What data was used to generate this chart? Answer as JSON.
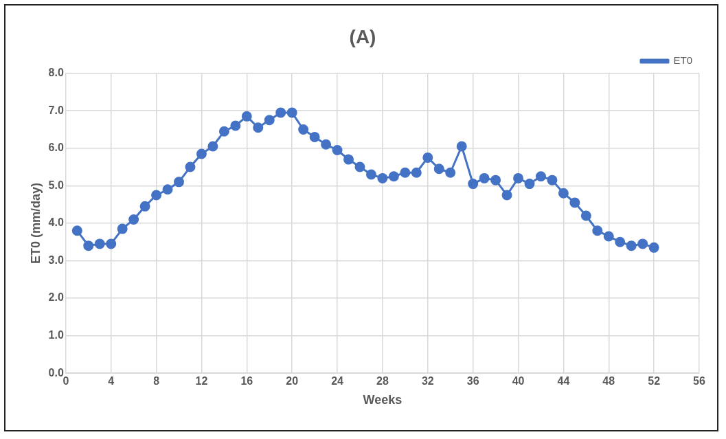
{
  "chart_data": {
    "type": "line",
    "title": "(A)",
    "xlabel": "Weeks",
    "ylabel": "ET0 (mm/day)",
    "x": [
      1,
      2,
      3,
      4,
      5,
      6,
      7,
      8,
      9,
      10,
      11,
      12,
      13,
      14,
      15,
      16,
      17,
      18,
      19,
      20,
      21,
      22,
      23,
      24,
      25,
      26,
      27,
      28,
      29,
      30,
      31,
      32,
      33,
      34,
      35,
      36,
      37,
      38,
      39,
      40,
      41,
      42,
      43,
      44,
      45,
      46,
      47,
      48,
      49,
      50,
      51,
      52
    ],
    "series": [
      {
        "name": "ET0",
        "color": "#4472c4",
        "values": [
          3.8,
          3.4,
          3.45,
          3.45,
          3.85,
          4.1,
          4.45,
          4.75,
          4.9,
          5.1,
          5.5,
          5.85,
          6.05,
          6.45,
          6.6,
          6.85,
          6.55,
          6.75,
          6.95,
          6.95,
          6.5,
          6.3,
          6.1,
          5.95,
          5.7,
          5.5,
          5.3,
          5.2,
          5.25,
          5.35,
          5.35,
          5.75,
          5.45,
          5.35,
          6.05,
          5.05,
          5.2,
          5.15,
          4.75,
          5.2,
          5.05,
          5.25,
          5.15,
          4.8,
          4.55,
          4.2,
          3.8,
          3.65,
          3.5,
          3.4,
          3.45,
          3.35
        ]
      }
    ],
    "xlim": [
      0,
      56
    ],
    "xticks": [
      0,
      4,
      8,
      12,
      16,
      20,
      24,
      28,
      32,
      36,
      40,
      44,
      48,
      52,
      56
    ],
    "ylim": [
      0,
      8
    ],
    "yticks": [
      {
        "value": 0,
        "label": "0.0"
      },
      {
        "value": 1,
        "label": "1.0"
      },
      {
        "value": 2,
        "label": "2.0"
      },
      {
        "value": 3,
        "label": "3.0"
      },
      {
        "value": 4,
        "label": "4.0"
      },
      {
        "value": 5,
        "label": "5.0"
      },
      {
        "value": 6,
        "label": "6.0"
      },
      {
        "value": 7,
        "label": "7.0"
      },
      {
        "value": 8,
        "label": "8.0"
      }
    ],
    "grid": true,
    "legend": "top right",
    "marker": "circle",
    "line_style": "solid"
  }
}
